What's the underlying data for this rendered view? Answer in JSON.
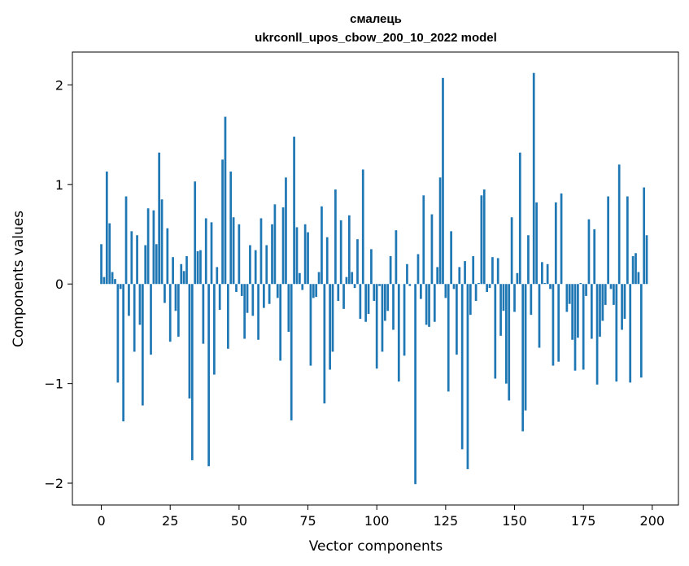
{
  "chart_data": {
    "type": "bar",
    "title_line1": "смалець",
    "title_line2": "ukrconll_upos_cbow_200_10_2022 model",
    "xlabel": "Vector components",
    "ylabel": "Components values",
    "xlim": [
      -10.5,
      209.5
    ],
    "ylim": [
      -2.22,
      2.33
    ],
    "xticks": [
      0,
      25,
      50,
      75,
      100,
      125,
      150,
      175,
      200
    ],
    "yticks": [
      -2,
      -1,
      0,
      1,
      2
    ],
    "ytick_labels": [
      "−2",
      "−1",
      "0",
      "1",
      "2"
    ],
    "xtick_labels": [
      "0",
      "25",
      "50",
      "75",
      "100",
      "125",
      "150",
      "175",
      "200"
    ],
    "grid": false,
    "bar_color": "#1f77b4",
    "values": [
      0.4,
      0.07,
      1.13,
      0.61,
      0.12,
      0.05,
      -0.99,
      -0.05,
      -1.38,
      0.88,
      -0.32,
      0.53,
      -0.68,
      0.49,
      -0.41,
      -1.22,
      0.39,
      0.76,
      -0.71,
      0.74,
      0.4,
      1.32,
      0.85,
      -0.19,
      0.56,
      -0.58,
      0.27,
      -0.27,
      -0.53,
      0.2,
      0.13,
      0.28,
      -1.15,
      -1.77,
      1.03,
      0.33,
      0.34,
      -0.6,
      0.66,
      -1.83,
      0.62,
      -0.91,
      0.17,
      -0.26,
      1.25,
      1.68,
      -0.65,
      1.13,
      0.67,
      -0.08,
      0.6,
      -0.12,
      -0.55,
      -0.29,
      0.39,
      -0.32,
      0.34,
      -0.56,
      0.66,
      -0.24,
      0.39,
      -0.2,
      0.6,
      0.8,
      -0.14,
      -0.77,
      0.77,
      1.07,
      -0.48,
      -1.37,
      1.48,
      0.57,
      0.11,
      -0.06,
      0.6,
      0.52,
      -0.82,
      -0.14,
      -0.13,
      0.12,
      0.78,
      -1.2,
      0.47,
      -0.86,
      -0.68,
      0.95,
      -0.17,
      0.64,
      -0.25,
      0.07,
      0.69,
      0.12,
      -0.04,
      0.45,
      -0.35,
      1.15,
      -0.38,
      -0.3,
      0.35,
      -0.17,
      -0.85,
      -0.02,
      -0.68,
      -0.37,
      -0.27,
      0.28,
      -0.46,
      0.54,
      -0.98,
      0.0,
      -0.72,
      0.2,
      -0.02,
      0.0,
      -2.01,
      0.3,
      -0.15,
      0.89,
      -0.41,
      -0.43,
      0.7,
      -0.38,
      0.17,
      1.07,
      2.07,
      -0.14,
      -1.08,
      0.53,
      -0.05,
      -0.71,
      0.17,
      -1.66,
      0.23,
      -1.86,
      -0.31,
      0.28,
      -0.17,
      0.01,
      0.89,
      0.95,
      -0.08,
      -0.04,
      0.27,
      -0.95,
      0.26,
      -0.52,
      -0.27,
      -1.0,
      -1.17,
      0.67,
      -0.28,
      0.11,
      1.32,
      -1.48,
      -1.27,
      0.49,
      -0.31,
      2.12,
      0.82,
      -0.64,
      0.22,
      0.01,
      0.2,
      -0.05,
      -0.82,
      0.82,
      -0.78,
      0.91,
      0.0,
      -0.28,
      -0.2,
      -0.56,
      -0.87,
      -0.54,
      0.01,
      -0.86,
      -0.12,
      0.65,
      -0.55,
      0.55,
      -1.01,
      -0.53,
      -0.37,
      -0.21,
      0.88,
      -0.05,
      -0.21,
      -0.98,
      1.2,
      -0.46,
      -0.35,
      0.88,
      -0.99,
      0.28,
      0.31,
      0.12,
      -0.94,
      0.97,
      0.49,
      0.0
    ]
  }
}
